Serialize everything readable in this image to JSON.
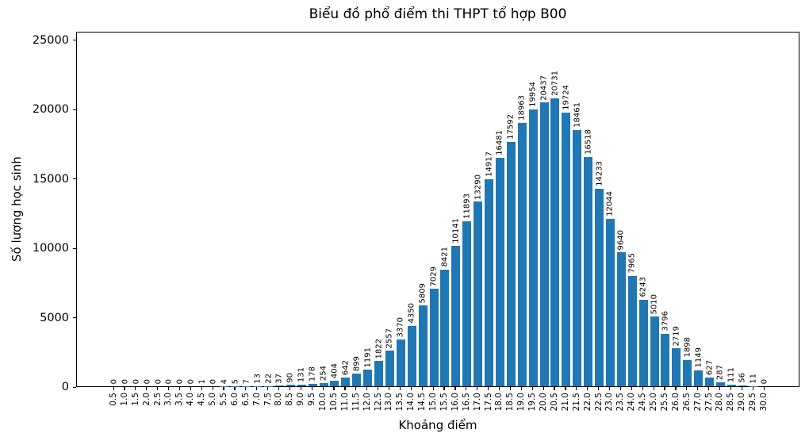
{
  "chart_data": {
    "type": "bar",
    "title": "Biểu đồ phổ điểm thi THPT tổ hợp B00",
    "xlabel": "Khoảng điểm",
    "ylabel": "Số lượng học sinh",
    "bar_color": "#1f77b4",
    "axis_color": "#000000",
    "background_color": "#ffffff",
    "grid": false,
    "legend": "none",
    "ylim": [
      0,
      25600
    ],
    "yticks": [
      0,
      5000,
      10000,
      15000,
      20000,
      25000
    ],
    "categories": [
      "0.5",
      "1.0",
      "1.5",
      "2.0",
      "2.5",
      "3.0",
      "3.5",
      "4.0",
      "4.5",
      "5.0",
      "5.5",
      "6.0",
      "6.5",
      "7.0",
      "7.5",
      "8.0",
      "8.5",
      "9.0",
      "9.5",
      "10.0",
      "10.5",
      "11.0",
      "11.5",
      "12.0",
      "12.5",
      "13.0",
      "13.5",
      "14.0",
      "14.5",
      "15.0",
      "15.5",
      "16.0",
      "16.5",
      "17.0",
      "17.5",
      "18.0",
      "18.5",
      "19.0",
      "19.5",
      "20.0",
      "20.5",
      "21.0",
      "21.5",
      "22.0",
      "22.5",
      "23.0",
      "23.5",
      "24.0",
      "24.5",
      "25.0",
      "25.5",
      "26.0",
      "26.5",
      "27.0",
      "27.5",
      "28.0",
      "28.5",
      "29.0",
      "29.5",
      "30.0"
    ],
    "values": [
      0,
      0,
      0,
      0,
      0,
      0,
      0,
      0,
      1,
      0,
      4,
      5,
      7,
      13,
      22,
      37,
      90,
      131,
      178,
      254,
      404,
      642,
      899,
      1191,
      1822,
      2557,
      3370,
      4350,
      5809,
      7029,
      8421,
      10141,
      11893,
      13290,
      14917,
      16481,
      17592,
      18963,
      19954,
      20437,
      20731,
      19724,
      18461,
      16518,
      14233,
      12044,
      9640,
      7965,
      6243,
      5010,
      3796,
      2719,
      1898,
      1149,
      627,
      287,
      111,
      56,
      11,
      0
    ]
  }
}
